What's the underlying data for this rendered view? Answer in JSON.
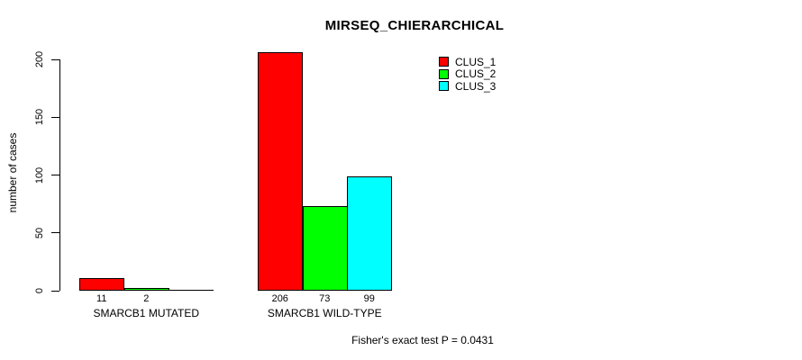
{
  "chart_data": {
    "type": "bar",
    "title": "MIRSEQ_CHIERARCHICAL",
    "ylabel": "number of cases",
    "xlabel": "",
    "ylim": [
      0,
      200
    ],
    "yticks": [
      0,
      50,
      100,
      150,
      200
    ],
    "grid": false,
    "categories": [
      "SMARCB1 MUTATED",
      "SMARCB1 WILD-TYPE"
    ],
    "series": [
      {
        "name": "CLUS_1",
        "color": "#ff0000",
        "values": [
          11,
          206
        ]
      },
      {
        "name": "CLUS_2",
        "color": "#00ff00",
        "values": [
          2,
          73
        ]
      },
      {
        "name": "CLUS_3",
        "color": "#00ffff",
        "values": [
          0,
          99
        ]
      }
    ],
    "bar_value_labels": [
      [
        "11",
        "2",
        ""
      ],
      [
        "206",
        "73",
        "99"
      ]
    ],
    "legend_position": "top-right",
    "annotation": "Fisher's exact test P = 0.0431"
  }
}
